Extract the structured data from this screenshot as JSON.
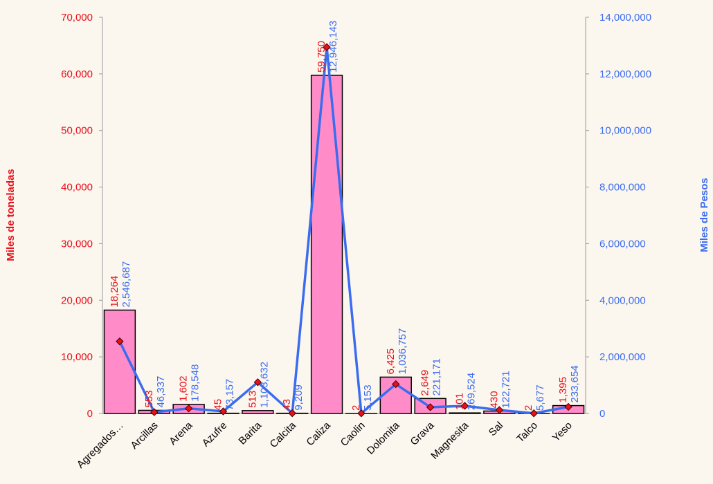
{
  "chart_data": {
    "type": "bar",
    "categories": [
      "Agregados…",
      "Arcillas",
      "Arena",
      "Azufre",
      "Barita",
      "Calcita",
      "Caliza",
      "Caolin",
      "Dolomita",
      "Grava",
      "Magnesita",
      "Sal",
      "Talco",
      "Yeso"
    ],
    "y_label": "Miles de toneladas",
    "y2_label": "Miles de Pesos",
    "ylim": [
      0,
      70000
    ],
    "yticks": [
      {
        "value": 0,
        "label": "0"
      },
      {
        "value": 10000,
        "label": "10,000"
      },
      {
        "value": 20000,
        "label": "20,000"
      },
      {
        "value": 30000,
        "label": "30,000"
      },
      {
        "value": 40000,
        "label": "40,000"
      },
      {
        "value": 50000,
        "label": "50,000"
      },
      {
        "value": 60000,
        "label": "60,000"
      },
      {
        "value": 70000,
        "label": "70,000"
      }
    ],
    "y2lim": [
      0,
      14000000
    ],
    "y2ticks": [
      {
        "value": 0,
        "label": "0"
      },
      {
        "value": 2000000,
        "label": "2,000,000"
      },
      {
        "value": 4000000,
        "label": "4,000,000"
      },
      {
        "value": 6000000,
        "label": "6,000,000"
      },
      {
        "value": 8000000,
        "label": "8,000,000"
      },
      {
        "value": 10000000,
        "label": "10,000,000"
      },
      {
        "value": 12000000,
        "label": "12,000,000"
      },
      {
        "value": 14000000,
        "label": "14,000,000"
      }
    ],
    "series": [
      {
        "type": "bar",
        "axis": "y",
        "color": "#ff8cc8",
        "label_color": "#e8101a",
        "values": [
          18264,
          553,
          1602,
          45,
          513,
          43,
          59750,
          2,
          6425,
          2649,
          101,
          430,
          2,
          1395
        ],
        "value_labels": [
          "18,264",
          "553",
          "1,602",
          "45",
          "513",
          "43",
          "59,750",
          "2",
          "6,425",
          "2,649",
          "101",
          "430",
          "2",
          "1,395"
        ]
      },
      {
        "type": "line",
        "axis": "y2",
        "color": "#3a6cf0",
        "marker_color": "#e8101a",
        "label_color": "#3a6cf0",
        "values": [
          2546687,
          46337,
          178548,
          73157,
          1103632,
          9209,
          12946143,
          5153,
          1036757,
          221171,
          269524,
          122721,
          5677,
          233654
        ],
        "value_labels": [
          "2,546,687",
          "46,337",
          "178,548",
          "73,157",
          "1,103,632",
          "9,209",
          "12,946,143",
          "5,153",
          "1,036,757",
          "221,171",
          "269,524",
          "122,721",
          "5,677",
          "233,654"
        ]
      }
    ]
  }
}
